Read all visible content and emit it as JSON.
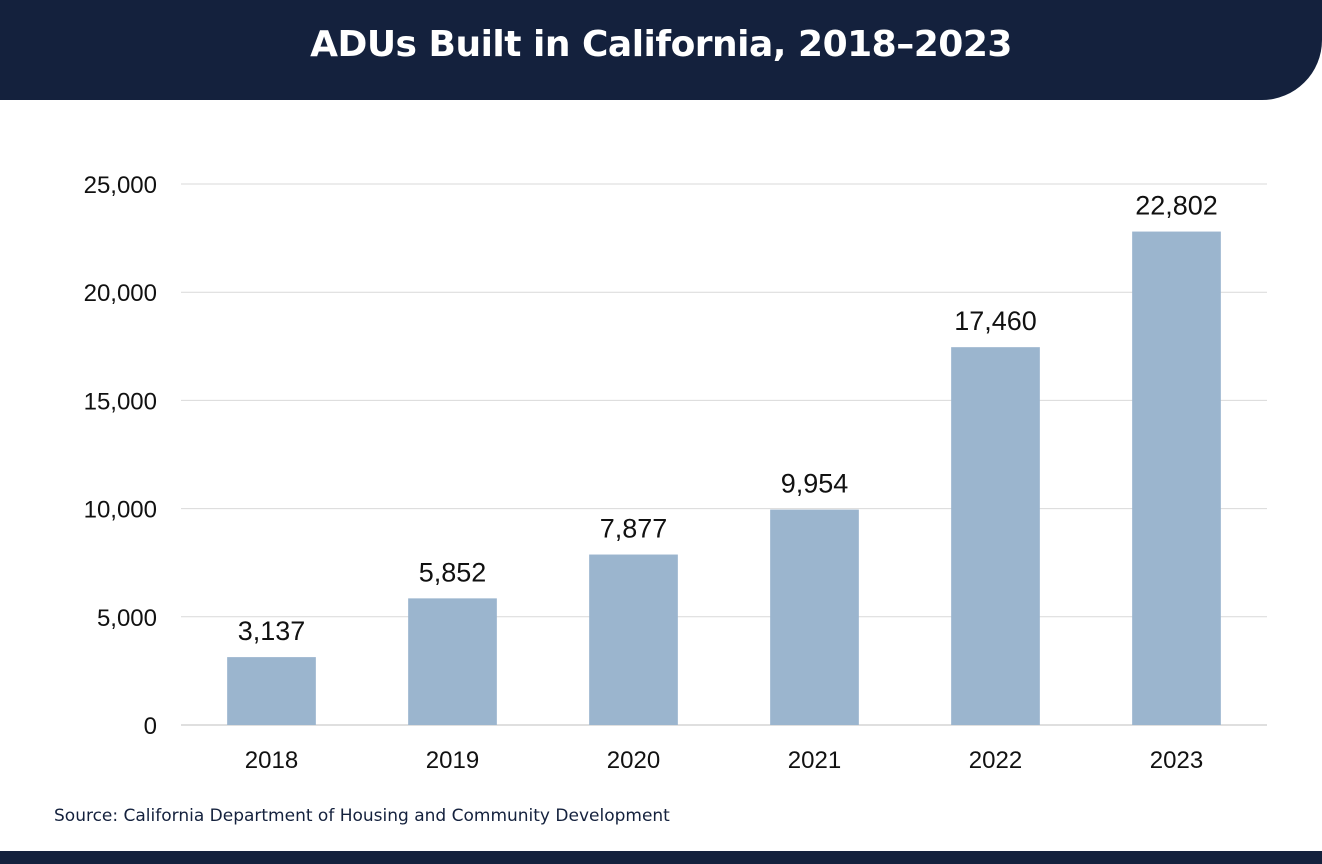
{
  "header": {
    "title": "ADUs Built in California, 2018–2023"
  },
  "chart_data": {
    "type": "bar",
    "title": "ADUs Built in California, 2018–2023",
    "categories": [
      "2018",
      "2019",
      "2020",
      "2021",
      "2022",
      "2023"
    ],
    "values": [
      3137,
      5852,
      7877,
      9954,
      17460,
      22802
    ],
    "value_labels": [
      "3,137",
      "5,852",
      "7,877",
      "9,954",
      "17,460",
      "22,802"
    ],
    "ylim": [
      0,
      25000
    ],
    "yticks": [
      0,
      5000,
      10000,
      15000,
      20000,
      25000
    ],
    "ytick_labels": [
      "0",
      "5,000",
      "10,000",
      "15,000",
      "20,000",
      "25,000"
    ],
    "xlabel": "",
    "ylabel": "",
    "grid": true,
    "bar_color": "#9bb5ce"
  },
  "source": {
    "text": "Source: California Department of Housing and Community Development"
  },
  "colors": {
    "brand": "#14213d",
    "bar": "#9bb5ce",
    "grid": "#d9d9d9"
  }
}
